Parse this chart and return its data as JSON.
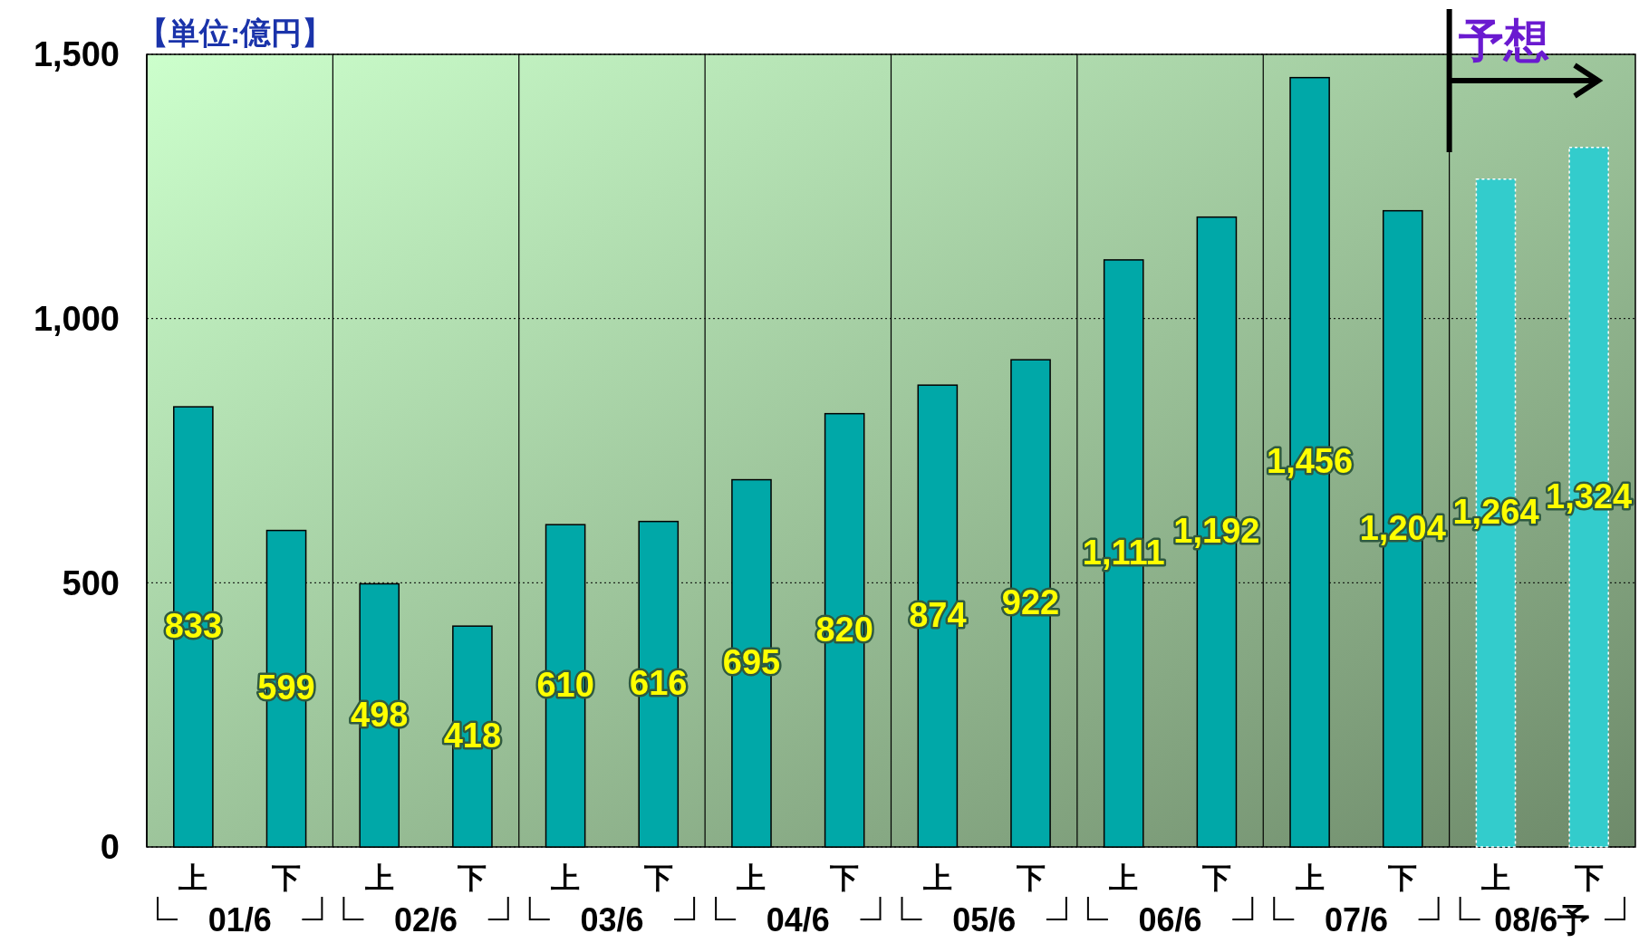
{
  "chart_data": {
    "type": "bar",
    "categories": [
      "上",
      "下",
      "上",
      "下",
      "上",
      "下",
      "上",
      "下",
      "上",
      "下",
      "上",
      "下",
      "上",
      "下",
      "上",
      "下"
    ],
    "values": [
      833,
      599,
      498,
      418,
      610,
      616,
      695,
      820,
      874,
      922,
      1111,
      1192,
      1456,
      1204,
      1264,
      1324
    ],
    "colors": [
      "#00a8a8",
      "#00a8a8",
      "#00a8a8",
      "#00a8a8",
      "#00a8a8",
      "#00a8a8",
      "#00a8a8",
      "#00a8a8",
      "#00a8a8",
      "#00a8a8",
      "#00a8a8",
      "#00a8a8",
      "#00a8a8",
      "#00a8a8",
      "#33cccc",
      "#33cccc"
    ],
    "ylim": [
      0,
      1500
    ],
    "yticks": [
      0,
      500,
      {
        "value": 1000,
        "label": "1,000"
      },
      {
        "value": 1500,
        "label": "1,500"
      }
    ],
    "grid": "y",
    "value_labels": [
      "833",
      "599",
      "498",
      "418",
      "610",
      "616",
      "695",
      "820",
      "874",
      "922",
      "1,111",
      "1,192",
      "1,456",
      "1,204",
      "1,264",
      "1,324"
    ],
    "annotations": [
      "【単位:億円】",
      "予想",
      "01/6",
      "02/6",
      "03/6",
      "04/6",
      "05/6",
      "06/6",
      "07/6",
      "08/6予"
    ]
  }
}
